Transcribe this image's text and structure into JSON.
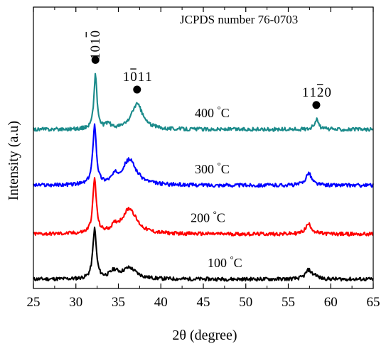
{
  "chart_data": {
    "type": "line",
    "title": "",
    "xlabel": "2θ (degree)",
    "ylabel": "Intensity (a.u)",
    "xlim": [
      25,
      65
    ],
    "xticks": [
      25,
      30,
      35,
      40,
      45,
      50,
      55,
      60,
      65
    ],
    "yticks_shown": false,
    "annotation_text": "JCPDS number 76-0703",
    "series": [
      {
        "name": "100 °C",
        "temp_value": "100",
        "temp_unit": "°C",
        "color": "#000000",
        "baseline": 0.0,
        "noise": 0.02,
        "peaks": [
          {
            "x": 32.2,
            "height": 0.55,
            "width": 0.25
          },
          {
            "x": 34.5,
            "height": 0.08,
            "width": 0.6
          },
          {
            "x": 36.3,
            "height": 0.12,
            "width": 1.0
          },
          {
            "x": 57.4,
            "height": 0.1,
            "width": 0.45
          },
          {
            "x": 58.2,
            "height": 0.03,
            "width": 0.3
          }
        ]
      },
      {
        "name": "200 °C",
        "temp_value": "200",
        "temp_unit": "°C",
        "color": "#ff0000",
        "baseline": 0.5,
        "noise": 0.02,
        "peaks": [
          {
            "x": 32.2,
            "height": 0.6,
            "width": 0.25
          },
          {
            "x": 34.6,
            "height": 0.06,
            "width": 0.5
          },
          {
            "x": 36.3,
            "height": 0.28,
            "width": 1.0
          },
          {
            "x": 57.4,
            "height": 0.11,
            "width": 0.45
          }
        ]
      },
      {
        "name": "300 °C",
        "temp_value": "300",
        "temp_unit": "°C",
        "color": "#0000ff",
        "baseline": 1.04,
        "noise": 0.02,
        "peaks": [
          {
            "x": 32.2,
            "height": 0.66,
            "width": 0.25
          },
          {
            "x": 34.6,
            "height": 0.07,
            "width": 0.5
          },
          {
            "x": 36.3,
            "height": 0.28,
            "width": 1.0
          },
          {
            "x": 57.4,
            "height": 0.14,
            "width": 0.4
          }
        ]
      },
      {
        "name": "400 °C",
        "temp_value": "400",
        "temp_unit": "°C",
        "color": "#1a8a8a",
        "baseline": 1.66,
        "noise": 0.02,
        "peaks": [
          {
            "x": 32.3,
            "height": 0.6,
            "width": 0.22
          },
          {
            "x": 33.8,
            "height": 0.06,
            "width": 0.3
          },
          {
            "x": 37.2,
            "height": 0.28,
            "width": 0.8
          },
          {
            "x": 58.3,
            "height": 0.11,
            "width": 0.3
          }
        ]
      }
    ],
    "peak_labels": [
      {
        "digits": [
          "1",
          "0",
          "1",
          "0"
        ],
        "bar_index": 2,
        "x": 32.3
      },
      {
        "digits": [
          "1",
          "0",
          "1",
          "1"
        ],
        "bar_index": 1,
        "x": 37.2
      },
      {
        "digits": [
          "1",
          "1",
          "2",
          "0"
        ],
        "bar_index": 2,
        "x": 58.3
      }
    ]
  }
}
